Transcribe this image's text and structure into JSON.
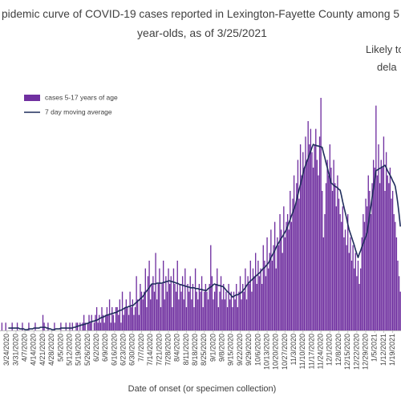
{
  "chart_data": {
    "type": "bar",
    "title": "pidemic curve of COVID-19 cases reported in Lexington-Fayette County among 5",
    "subtitle": "year-olds, as of 3/25/2021",
    "annotation": [
      "Likely to",
      "dela"
    ],
    "x_label": "Date of onset (or specimen collection)",
    "legend": "upper left",
    "ylim": [
      0,
      30
    ],
    "categories": [
      null,
      null,
      null,
      null,
      null,
      "3/24/2020",
      null,
      null,
      null,
      null,
      null,
      null,
      "3/31/2020",
      null,
      null,
      null,
      null,
      null,
      null,
      "4/7/2020",
      null,
      null,
      null,
      null,
      null,
      null,
      "4/14/2020",
      null,
      null,
      null,
      null,
      null,
      null,
      "4/21/2020",
      null,
      null,
      null,
      null,
      null,
      null,
      "4/28/2020",
      null,
      null,
      null,
      null,
      null,
      null,
      "5/5/2020",
      null,
      null,
      null,
      null,
      null,
      null,
      "5/12/2020",
      null,
      null,
      null,
      null,
      null,
      null,
      "5/19/2020",
      null,
      null,
      null,
      null,
      null,
      null,
      "5/26/2020",
      null,
      null,
      null,
      null,
      null,
      null,
      "6/2/2020",
      null,
      null,
      null,
      null,
      null,
      null,
      "6/9/2020",
      null,
      null,
      null,
      null,
      null,
      null,
      "6/16/2020",
      null,
      null,
      null,
      null,
      null,
      null,
      "6/23/2020",
      null,
      null,
      null,
      null,
      null,
      null,
      "6/30/2020",
      null,
      null,
      null,
      null,
      null,
      null,
      "7/7/2020",
      null,
      null,
      null,
      null,
      null,
      null,
      "7/14/2020",
      null,
      null,
      null,
      null,
      null,
      null,
      "7/21/2020",
      null,
      null,
      null,
      null,
      null,
      null,
      "7/28/2020",
      null,
      null,
      null,
      null,
      null,
      null,
      "8/4/2020",
      null,
      null,
      null,
      null,
      null,
      null,
      "8/11/2020",
      null,
      null,
      null,
      null,
      null,
      null,
      "8/18/2020",
      null,
      null,
      null,
      null,
      null,
      null,
      "8/25/2020",
      null,
      null,
      null,
      null,
      null,
      null,
      "9/1/2020",
      null,
      null,
      null,
      null,
      null,
      null,
      "9/8/2020",
      null,
      null,
      null,
      null,
      null,
      null,
      "9/15/2020",
      null,
      null,
      null,
      null,
      null,
      null,
      "9/22/2020",
      null,
      null,
      null,
      null,
      null,
      null,
      "9/29/2020",
      null,
      null,
      null,
      null,
      null,
      null,
      "10/6/2020",
      null,
      null,
      null,
      null,
      null,
      null,
      "10/13/2020",
      null,
      null,
      null,
      null,
      null,
      null,
      "10/20/2020",
      null,
      null,
      null,
      null,
      null,
      null,
      "10/27/2020",
      null,
      null,
      null,
      null,
      null,
      null,
      "11/3/2020",
      null,
      null,
      null,
      null,
      null,
      null,
      "11/10/2020",
      null,
      null,
      null,
      null,
      null,
      null,
      "11/17/2020",
      null,
      null,
      null,
      null,
      null,
      null,
      "11/24/2020",
      null,
      null,
      null,
      null,
      null,
      null,
      "12/1/2020",
      null,
      null,
      null,
      null,
      null,
      null,
      "12/8/2020",
      null,
      null,
      null,
      null,
      null,
      null,
      "12/15/2020",
      null,
      null,
      null,
      null,
      null,
      null,
      "12/22/2020",
      null,
      null,
      null,
      null,
      null,
      null,
      "12/29/2020",
      null,
      null,
      null,
      null,
      null,
      null,
      "1/5/2021",
      null,
      null,
      null,
      null,
      null,
      null,
      "1/12/2021",
      null,
      null,
      null,
      null,
      null,
      null,
      "1/19/2021",
      null,
      null,
      null,
      null,
      null,
      null
    ],
    "series": [
      {
        "name": "cases 5-17 years of age",
        "type": "bar",
        "color": "#7030a0",
        "values": [
          0,
          1,
          0,
          0,
          1,
          0,
          0,
          0,
          0,
          1,
          0,
          0,
          0,
          1,
          0,
          0,
          0,
          1,
          0,
          0,
          0,
          0,
          1,
          0,
          0,
          0,
          0,
          1,
          0,
          0,
          0,
          0,
          0,
          2,
          1,
          0,
          0,
          1,
          0,
          0,
          0,
          0,
          1,
          0,
          0,
          0,
          0,
          1,
          0,
          0,
          0,
          1,
          0,
          0,
          1,
          0,
          1,
          0,
          0,
          1,
          1,
          0,
          1,
          0,
          1,
          2,
          1,
          0,
          1,
          2,
          1,
          2,
          0,
          1,
          2,
          3,
          1,
          2,
          1,
          3,
          2,
          1,
          2,
          3,
          2,
          4,
          1,
          3,
          2,
          1,
          3,
          3,
          2,
          4,
          1,
          5,
          2,
          3,
          4,
          3,
          2,
          5,
          3,
          4,
          2,
          3,
          7,
          4,
          2,
          6,
          5,
          4,
          5,
          8,
          3,
          7,
          9,
          4,
          6,
          7,
          5,
          10,
          4,
          6,
          8,
          3,
          6,
          9,
          4,
          7,
          5,
          8,
          6,
          7,
          3,
          8,
          6,
          5,
          9,
          4,
          6,
          5,
          7,
          4,
          8,
          3,
          6,
          5,
          7,
          4,
          6,
          3,
          8,
          5,
          4,
          6,
          5,
          7,
          3,
          5,
          6,
          5,
          4,
          6,
          11,
          7,
          4,
          5,
          6,
          8,
          3,
          5,
          7,
          4,
          6,
          4,
          5,
          3,
          6,
          4,
          5,
          3,
          5,
          4,
          6,
          3,
          5,
          7,
          4,
          6,
          5,
          8,
          4,
          7,
          6,
          9,
          5,
          8,
          7,
          10,
          6,
          9,
          7,
          8,
          6,
          11,
          9,
          7,
          12,
          8,
          10,
          13,
          9,
          11,
          14,
          8,
          12,
          11,
          15,
          13,
          10,
          16,
          12,
          14,
          15,
          13,
          18,
          14,
          17,
          20,
          16,
          19,
          22,
          17,
          24,
          20,
          23,
          21,
          25,
          22,
          27,
          24,
          26,
          23,
          21,
          24,
          26,
          22,
          20,
          25,
          30,
          18,
          12,
          15,
          19,
          22,
          20,
          24,
          21,
          18,
          22,
          19,
          16,
          20,
          17,
          15,
          14,
          16,
          12,
          13,
          11,
          15,
          10,
          12,
          9,
          11,
          8,
          10,
          7,
          9,
          6,
          8,
          12,
          15,
          14,
          17,
          16,
          20,
          18,
          15,
          19,
          22,
          21,
          29,
          20,
          24,
          19,
          22,
          21,
          25,
          18,
          23,
          20,
          19,
          21,
          17,
          18,
          15,
          14,
          12,
          9,
          7,
          5
        ]
      },
      {
        "name": "7 day moving average",
        "type": "line",
        "color": "#1f2d5c",
        "values": [
          null,
          null,
          null,
          null,
          null,
          null,
          0.3,
          0.3,
          0.3,
          0.3,
          0.3,
          0.3,
          0.3,
          0.3,
          0.3,
          0.2,
          0.2,
          0.2,
          0.2,
          0.1,
          0.1,
          0.1,
          0.2,
          0.2,
          0.2,
          0.2,
          0.3,
          0.3,
          0.3,
          0.3,
          0.3,
          0.4,
          0.4,
          0.4,
          0.4,
          0.4,
          0.3,
          0.3,
          0.2,
          0.2,
          0.1,
          0.1,
          0.1,
          0.2,
          0.2,
          0.2,
          0.2,
          0.3,
          0.3,
          0.3,
          0.3,
          0.3,
          0.3,
          0.3,
          0.3,
          0.3,
          0.3,
          0.4,
          0.4,
          0.5,
          0.5,
          0.6,
          0.6,
          0.7,
          0.7,
          0.8,
          0.8,
          0.9,
          0.9,
          1.0,
          1.1,
          1.1,
          1.2,
          1.2,
          1.3,
          1.3,
          1.4,
          1.5,
          1.6,
          1.7,
          1.7,
          1.8,
          1.9,
          2.0,
          2.0,
          2.1,
          2.1,
          2.2,
          2.2,
          2.3,
          2.3,
          2.4,
          2.5,
          2.6,
          2.6,
          2.7,
          2.8,
          2.9,
          3.0,
          3.0,
          3.1,
          3.1,
          3.2,
          3.2,
          3.3,
          3.5,
          3.6,
          3.8,
          3.9,
          4.1,
          4.2,
          4.4,
          4.6,
          4.9,
          5.1,
          5.3,
          5.5,
          5.8,
          6.0,
          6.0,
          6.0,
          6.0,
          6.1,
          6.1,
          6.1,
          6.1,
          6.1,
          6.2,
          6.2,
          6.3,
          6.3,
          6.4,
          6.4,
          6.3,
          6.3,
          6.2,
          6.2,
          6.1,
          6.1,
          6.0,
          5.9,
          5.9,
          5.8,
          5.8,
          5.7,
          5.7,
          5.6,
          5.6,
          5.5,
          5.5,
          5.5,
          5.5,
          5.4,
          5.4,
          5.4,
          5.3,
          5.3,
          5.3,
          5.2,
          5.2,
          5.1,
          5.2,
          5.4,
          5.5,
          5.6,
          5.7,
          5.9,
          6.0,
          5.9,
          5.9,
          5.8,
          5.8,
          5.7,
          5.7,
          5.6,
          5.4,
          5.2,
          5.0,
          4.9,
          4.7,
          4.5,
          4.3,
          4.4,
          4.5,
          4.6,
          4.6,
          4.7,
          4.8,
          4.9,
          5.1,
          5.3,
          5.5,
          5.8,
          6.0,
          6.2,
          6.4,
          6.5,
          6.7,
          6.8,
          7.0,
          7.1,
          7.3,
          7.4,
          7.6,
          7.8,
          8.0,
          8.1,
          8.3,
          8.5,
          8.7,
          9.0,
          9.4,
          9.7,
          10.0,
          10.3,
          10.7,
          11.0,
          11.3,
          11.6,
          11.9,
          12.1,
          12.4,
          12.7,
          13.0,
          13.4,
          13.9,
          14.3,
          14.8,
          15.2,
          15.7,
          16.1,
          16.8,
          17.5,
          18.2,
          18.8,
          19.5,
          20.2,
          20.9,
          21.3,
          21.8,
          22.2,
          22.7,
          23.1,
          23.6,
          24.0,
          23.9,
          23.9,
          23.8,
          23.8,
          23.7,
          23.7,
          23.6,
          22.9,
          22.3,
          21.6,
          21.0,
          20.3,
          19.7,
          19.0,
          18.9,
          18.7,
          18.6,
          18.5,
          18.4,
          18.2,
          18.1,
          17.4,
          16.6,
          15.9,
          15.2,
          14.5,
          13.7,
          13.0,
          12.5,
          12.0,
          11.5,
          11.0,
          10.4,
          9.9,
          9.4,
          9.9,
          10.3,
          10.8,
          11.2,
          11.7,
          12.1,
          12.6,
          13.7,
          14.9,
          16.0,
          17.2,
          18.3,
          19.5,
          20.6,
          20.7,
          20.8,
          20.9,
          21.0,
          21.1,
          21.2,
          21.3,
          21.0,
          20.6,
          20.3,
          20.0,
          19.7,
          19.3,
          19.0,
          18.6,
          17.6,
          16.4,
          15.0,
          13.4
        ]
      }
    ]
  }
}
